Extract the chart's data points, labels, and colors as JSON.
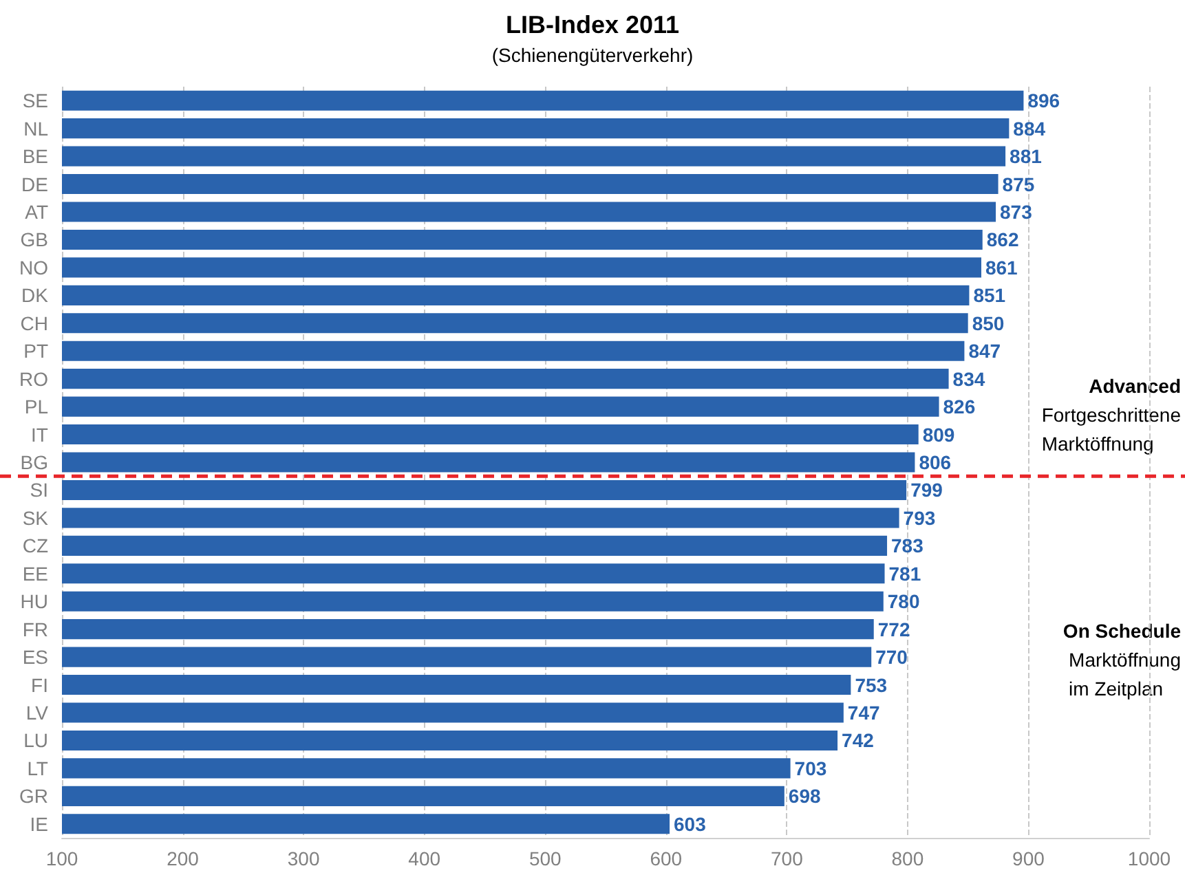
{
  "chart_data": {
    "type": "bar",
    "orientation": "horizontal",
    "title": "LIB-Index 2011",
    "subtitle": "(Schienengüterverkehr)",
    "categories": [
      "SE",
      "NL",
      "BE",
      "DE",
      "AT",
      "GB",
      "NO",
      "DK",
      "CH",
      "PT",
      "RO",
      "PL",
      "IT",
      "BG",
      "SI",
      "SK",
      "CZ",
      "EE",
      "HU",
      "FR",
      "ES",
      "FI",
      "LV",
      "LU",
      "LT",
      "GR",
      "IE"
    ],
    "values": [
      896,
      884,
      881,
      875,
      873,
      862,
      861,
      851,
      850,
      847,
      834,
      826,
      809,
      806,
      799,
      793,
      783,
      781,
      780,
      772,
      770,
      753,
      747,
      742,
      703,
      698,
      603
    ],
    "color": "#2a63ad",
    "data_labels": true,
    "xlim": [
      100,
      1000
    ],
    "xticks": [
      100,
      200,
      300,
      400,
      500,
      600,
      700,
      800,
      900,
      1000
    ],
    "grid": "x",
    "ref_lines": [
      {
        "axis": "y",
        "value": "BG",
        "color": "#e8262a",
        "line_style": "dashed"
      }
    ],
    "annotations": [
      "Advanced",
      "Fortgeschrittene Marktöffnung",
      "On Schedule",
      "Marktöffnung im Zeitplan"
    ]
  }
}
